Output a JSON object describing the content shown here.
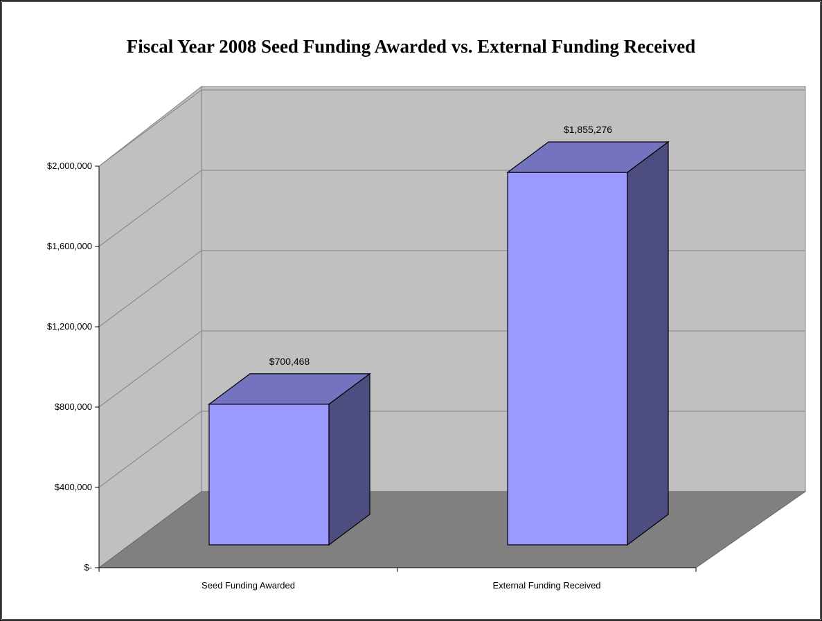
{
  "chart_data": {
    "type": "bar",
    "title": "Fiscal Year 2008 Seed Funding Awarded vs. External Funding Received",
    "categories": [
      "Seed Funding Awarded",
      "External Funding Received"
    ],
    "values": [
      700468,
      1855276
    ],
    "value_labels": [
      "$700,468",
      "$1,855,276"
    ],
    "ylim": [
      0,
      2000000
    ],
    "y_ticks": [
      0,
      400000,
      800000,
      1200000,
      1600000,
      2000000
    ],
    "y_tick_labels": [
      "$-",
      "$400,000",
      "$800,000",
      "$1,200,000",
      "$1,600,000",
      "$2,000,000"
    ],
    "grid": true,
    "style": "3d",
    "colors": {
      "bar_front": "#9999FF",
      "bar_top": "#7373BF",
      "bar_side": "#4D4D80",
      "back_wall": "#C0C0C0",
      "floor": "#808080",
      "gridline": "#808080"
    }
  }
}
